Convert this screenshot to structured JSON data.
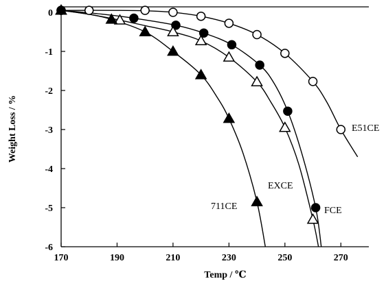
{
  "chart_data": {
    "type": "scatter",
    "title": "",
    "xlabel": "Temp / ℃",
    "ylabel": "Weight Loss / %",
    "xlim": [
      170,
      280
    ],
    "ylim": [
      -6,
      0
    ],
    "xticks": [
      170,
      190,
      210,
      230,
      250,
      270
    ],
    "yticks": [
      0,
      -1,
      -2,
      -3,
      -4,
      -5,
      -6
    ],
    "grid": false,
    "series": [
      {
        "name": "E51CE",
        "marker": "open-circle",
        "points": [
          [
            170,
            0.05
          ],
          [
            180,
            0.05
          ],
          [
            200,
            0.05
          ],
          [
            210,
            0.0
          ],
          [
            220,
            -0.1
          ],
          [
            230,
            -0.28
          ],
          [
            240,
            -0.57
          ],
          [
            250,
            -1.05
          ],
          [
            260,
            -1.77
          ],
          [
            270,
            -3.0
          ]
        ],
        "curve": [
          [
            170,
            0.05
          ],
          [
            190,
            0.05
          ],
          [
            200,
            0.04
          ],
          [
            210,
            0.0
          ],
          [
            220,
            -0.1
          ],
          [
            230,
            -0.28
          ],
          [
            240,
            -0.57
          ],
          [
            250,
            -1.05
          ],
          [
            260,
            -1.77
          ],
          [
            265,
            -2.3
          ],
          [
            270,
            -3.0
          ],
          [
            276,
            -3.7
          ]
        ]
      },
      {
        "name": "FCE",
        "marker": "filled-circle",
        "points": [
          [
            170,
            0.05
          ],
          [
            196,
            -0.15
          ],
          [
            211,
            -0.33
          ],
          [
            221,
            -0.53
          ],
          [
            231,
            -0.83
          ],
          [
            241,
            -1.35
          ],
          [
            251,
            -2.53
          ],
          [
            261,
            -5.0
          ]
        ],
        "curve": [
          [
            170,
            0.05
          ],
          [
            185,
            -0.05
          ],
          [
            196,
            -0.15
          ],
          [
            211,
            -0.33
          ],
          [
            221,
            -0.53
          ],
          [
            231,
            -0.83
          ],
          [
            241,
            -1.35
          ],
          [
            246,
            -1.8
          ],
          [
            251,
            -2.53
          ],
          [
            256,
            -3.6
          ],
          [
            261,
            -5.0
          ],
          [
            263,
            -6.0
          ]
        ]
      },
      {
        "name": "EXCE",
        "marker": "open-triangle",
        "points": [
          [
            170,
            0.05
          ],
          [
            191,
            -0.2
          ],
          [
            210,
            -0.5
          ],
          [
            220,
            -0.73
          ],
          [
            230,
            -1.15
          ],
          [
            240,
            -1.78
          ],
          [
            250,
            -2.95
          ],
          [
            260,
            -5.3
          ]
        ],
        "curve": [
          [
            170,
            0.05
          ],
          [
            180,
            -0.05
          ],
          [
            191,
            -0.2
          ],
          [
            200,
            -0.34
          ],
          [
            210,
            -0.5
          ],
          [
            220,
            -0.73
          ],
          [
            230,
            -1.15
          ],
          [
            240,
            -1.78
          ],
          [
            245,
            -2.3
          ],
          [
            250,
            -2.95
          ],
          [
            255,
            -3.9
          ],
          [
            260,
            -5.3
          ],
          [
            262,
            -6.0
          ]
        ]
      },
      {
        "name": "711CE",
        "marker": "filled-triangle",
        "points": [
          [
            170,
            0.05
          ],
          [
            188,
            -0.18
          ],
          [
            200,
            -0.5
          ],
          [
            210,
            -1.0
          ],
          [
            220,
            -1.6
          ],
          [
            230,
            -2.72
          ],
          [
            240,
            -4.85
          ]
        ],
        "curve": [
          [
            170,
            0.05
          ],
          [
            180,
            -0.05
          ],
          [
            188,
            -0.18
          ],
          [
            200,
            -0.5
          ],
          [
            210,
            -1.0
          ],
          [
            220,
            -1.6
          ],
          [
            226,
            -2.2
          ],
          [
            230,
            -2.72
          ],
          [
            235,
            -3.6
          ],
          [
            240,
            -4.85
          ],
          [
            243,
            -6.0
          ]
        ]
      }
    ]
  }
}
